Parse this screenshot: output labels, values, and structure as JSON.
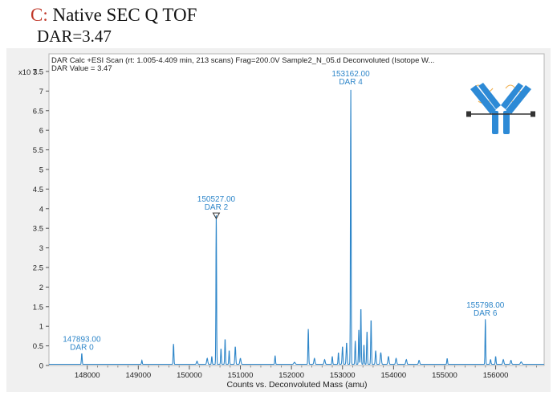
{
  "heading": {
    "letter": "C:",
    "title": "Native SEC Q TOF",
    "subtitle": "DAR=3.47"
  },
  "chart_data": {
    "type": "line",
    "header_line1": "DAR Calc +ESI Scan (rt: 1.005-4.409 min, 213 scans) Frag=200.0V Sample2_N_05.d  Deconvoluted (Isotope W...",
    "header_line2": "DAR Value = 3.47",
    "y_exponent": "x10 3",
    "xlabel": "Counts vs. Deconvoluted Mass (amu)",
    "xlim": [
      147250,
      156950
    ],
    "ylim": [
      0,
      7.95
    ],
    "x_ticks": [
      "148000",
      "149000",
      "150000",
      "151000",
      "152000",
      "153000",
      "154000",
      "155000",
      "156000"
    ],
    "y_ticks": [
      "0",
      "0.5",
      "1",
      "1.5",
      "2",
      "2.5",
      "3",
      "3.5",
      "4",
      "4.5",
      "5",
      "5.5",
      "6",
      "6.5",
      "7",
      "7.5"
    ],
    "line_color": "#2e86c9",
    "annotations": [
      {
        "mass": "147893.00",
        "label": "DAR 0",
        "x": 147893,
        "y": 0.28
      },
      {
        "mass": "150527.00",
        "label": "DAR 2",
        "x": 150527,
        "y": 3.85
      },
      {
        "mass": "153162.00",
        "label": "DAR 4",
        "x": 153162,
        "y": 7.05
      },
      {
        "mass": "155798.00",
        "label": "DAR 6",
        "x": 155798,
        "y": 1.15
      }
    ],
    "peaks": [
      {
        "x": 147893,
        "y": 0.28,
        "w": 10
      },
      {
        "x": 149070,
        "y": 0.1,
        "w": 10
      },
      {
        "x": 149690,
        "y": 0.52,
        "w": 10
      },
      {
        "x": 150150,
        "y": 0.08,
        "w": 15
      },
      {
        "x": 150350,
        "y": 0.15,
        "w": 15
      },
      {
        "x": 150440,
        "y": 0.2,
        "w": 10
      },
      {
        "x": 150527,
        "y": 3.85,
        "w": 9
      },
      {
        "x": 150620,
        "y": 0.4,
        "w": 10
      },
      {
        "x": 150700,
        "y": 0.65,
        "w": 10
      },
      {
        "x": 150780,
        "y": 0.35,
        "w": 10
      },
      {
        "x": 150900,
        "y": 0.45,
        "w": 12
      },
      {
        "x": 151000,
        "y": 0.15,
        "w": 15
      },
      {
        "x": 151680,
        "y": 0.22,
        "w": 10
      },
      {
        "x": 152060,
        "y": 0.05,
        "w": 20
      },
      {
        "x": 152330,
        "y": 0.9,
        "w": 10
      },
      {
        "x": 152450,
        "y": 0.15,
        "w": 15
      },
      {
        "x": 152650,
        "y": 0.12,
        "w": 15
      },
      {
        "x": 152800,
        "y": 0.2,
        "w": 10
      },
      {
        "x": 152920,
        "y": 0.3,
        "w": 10
      },
      {
        "x": 153000,
        "y": 0.45,
        "w": 12
      },
      {
        "x": 153080,
        "y": 0.55,
        "w": 12
      },
      {
        "x": 153162,
        "y": 7.0,
        "w": 9
      },
      {
        "x": 153250,
        "y": 0.6,
        "w": 10
      },
      {
        "x": 153320,
        "y": 0.9,
        "w": 10
      },
      {
        "x": 153360,
        "y": 1.45,
        "w": 10
      },
      {
        "x": 153420,
        "y": 0.5,
        "w": 10
      },
      {
        "x": 153480,
        "y": 0.85,
        "w": 10
      },
      {
        "x": 153560,
        "y": 1.15,
        "w": 10
      },
      {
        "x": 153650,
        "y": 0.35,
        "w": 12
      },
      {
        "x": 153750,
        "y": 0.3,
        "w": 15
      },
      {
        "x": 153900,
        "y": 0.2,
        "w": 15
      },
      {
        "x": 154050,
        "y": 0.15,
        "w": 15
      },
      {
        "x": 154250,
        "y": 0.12,
        "w": 15
      },
      {
        "x": 154500,
        "y": 0.1,
        "w": 15
      },
      {
        "x": 155050,
        "y": 0.15,
        "w": 10
      },
      {
        "x": 155798,
        "y": 1.15,
        "w": 9
      },
      {
        "x": 155900,
        "y": 0.12,
        "w": 12
      },
      {
        "x": 156000,
        "y": 0.2,
        "w": 10
      },
      {
        "x": 156150,
        "y": 0.12,
        "w": 15
      },
      {
        "x": 156300,
        "y": 0.1,
        "w": 15
      },
      {
        "x": 156500,
        "y": 0.06,
        "w": 20
      }
    ]
  }
}
